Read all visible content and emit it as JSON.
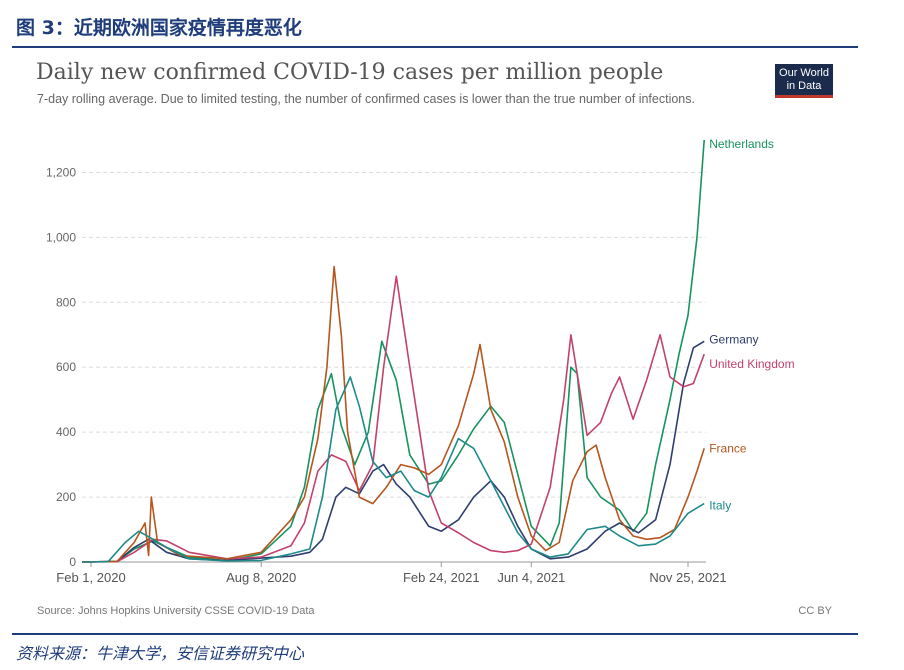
{
  "figure_heading": "图 3：近期欧洲国家疫情再度恶化",
  "footnote": "资料来源：牛津大学，安信证券研究中心",
  "logo": {
    "line1": "Our World",
    "line2": "in Data"
  },
  "colors": {
    "heading": "#1f3d7a",
    "logo_bg": "#1a2b4c",
    "logo_accent": "#c0392b"
  },
  "chart_data": {
    "type": "line",
    "title": "Daily new confirmed COVID-19 cases per million people",
    "subtitle": "7-day rolling average. Due to limited testing, the number of confirmed cases is lower than the true number of infections.",
    "source": "Source: Johns Hopkins University CSSE COVID-19 Data",
    "license": "CC BY",
    "x_ticks": [
      "Feb 1, 2020",
      "Aug 8, 2020",
      "Feb 24, 2021",
      "Jun 4, 2021",
      "Nov 25, 2021"
    ],
    "y_ticks": [
      "0",
      "200",
      "400",
      "600",
      "800",
      "1,000",
      "1,200"
    ],
    "ylim": [
      0,
      1300
    ],
    "xlim": [
      "2020-01-22",
      "2021-12-15"
    ],
    "grid": "horizontal dashed",
    "legend": "inline labels at line ends",
    "series": [
      {
        "name": "Netherlands",
        "color": "#18935f",
        "points": [
          [
            "2020-01-22",
            0
          ],
          [
            "2020-03-01",
            2
          ],
          [
            "2020-03-20",
            40
          ],
          [
            "2020-04-10",
            65
          ],
          [
            "2020-04-25",
            45
          ],
          [
            "2020-05-20",
            15
          ],
          [
            "2020-07-01",
            4
          ],
          [
            "2020-08-08",
            25
          ],
          [
            "2020-09-10",
            110
          ],
          [
            "2020-09-25",
            230
          ],
          [
            "2020-10-10",
            470
          ],
          [
            "2020-10-25",
            580
          ],
          [
            "2020-11-05",
            420
          ],
          [
            "2020-11-20",
            300
          ],
          [
            "2020-12-05",
            400
          ],
          [
            "2020-12-20",
            680
          ],
          [
            "2021-01-05",
            560
          ],
          [
            "2021-01-20",
            330
          ],
          [
            "2021-02-10",
            240
          ],
          [
            "2021-02-24",
            250
          ],
          [
            "2021-03-15",
            330
          ],
          [
            "2021-04-01",
            410
          ],
          [
            "2021-04-20",
            480
          ],
          [
            "2021-05-05",
            430
          ],
          [
            "2021-05-20",
            270
          ],
          [
            "2021-06-04",
            110
          ],
          [
            "2021-06-25",
            50
          ],
          [
            "2021-07-05",
            120
          ],
          [
            "2021-07-18",
            600
          ],
          [
            "2021-07-25",
            580
          ],
          [
            "2021-08-05",
            260
          ],
          [
            "2021-08-20",
            200
          ],
          [
            "2021-09-10",
            160
          ],
          [
            "2021-09-25",
            95
          ],
          [
            "2021-10-10",
            150
          ],
          [
            "2021-10-20",
            300
          ],
          [
            "2021-11-05",
            500
          ],
          [
            "2021-11-15",
            640
          ],
          [
            "2021-11-25",
            760
          ],
          [
            "2021-12-05",
            1000
          ],
          [
            "2021-12-13",
            1300
          ]
        ]
      },
      {
        "name": "Germany",
        "color": "#2f3e6e",
        "points": [
          [
            "2020-01-22",
            0
          ],
          [
            "2020-03-01",
            2
          ],
          [
            "2020-03-20",
            45
          ],
          [
            "2020-04-05",
            70
          ],
          [
            "2020-04-25",
            30
          ],
          [
            "2020-05-20",
            10
          ],
          [
            "2020-07-01",
            5
          ],
          [
            "2020-08-08",
            12
          ],
          [
            "2020-09-10",
            18
          ],
          [
            "2020-10-01",
            30
          ],
          [
            "2020-10-15",
            70
          ],
          [
            "2020-10-30",
            200
          ],
          [
            "2020-11-10",
            230
          ],
          [
            "2020-11-25",
            210
          ],
          [
            "2020-12-10",
            280
          ],
          [
            "2020-12-22",
            300
          ],
          [
            "2021-01-05",
            240
          ],
          [
            "2021-01-20",
            200
          ],
          [
            "2021-02-10",
            110
          ],
          [
            "2021-02-24",
            95
          ],
          [
            "2021-03-15",
            130
          ],
          [
            "2021-04-01",
            200
          ],
          [
            "2021-04-20",
            250
          ],
          [
            "2021-05-05",
            200
          ],
          [
            "2021-05-20",
            110
          ],
          [
            "2021-06-04",
            40
          ],
          [
            "2021-06-25",
            10
          ],
          [
            "2021-07-15",
            15
          ],
          [
            "2021-08-05",
            40
          ],
          [
            "2021-08-25",
            95
          ],
          [
            "2021-09-10",
            120
          ],
          [
            "2021-10-01",
            90
          ],
          [
            "2021-10-20",
            130
          ],
          [
            "2021-11-05",
            300
          ],
          [
            "2021-11-20",
            550
          ],
          [
            "2021-12-01",
            660
          ],
          [
            "2021-12-13",
            680
          ]
        ]
      },
      {
        "name": "United Kingdom",
        "color": "#c2426b",
        "points": [
          [
            "2020-01-22",
            0
          ],
          [
            "2020-03-01",
            1
          ],
          [
            "2020-03-20",
            30
          ],
          [
            "2020-04-10",
            70
          ],
          [
            "2020-04-25",
            65
          ],
          [
            "2020-05-20",
            30
          ],
          [
            "2020-07-01",
            10
          ],
          [
            "2020-08-08",
            15
          ],
          [
            "2020-09-10",
            50
          ],
          [
            "2020-09-25",
            120
          ],
          [
            "2020-10-10",
            280
          ],
          [
            "2020-10-25",
            330
          ],
          [
            "2020-11-10",
            310
          ],
          [
            "2020-11-25",
            220
          ],
          [
            "2020-12-10",
            300
          ],
          [
            "2020-12-22",
            600
          ],
          [
            "2021-01-05",
            880
          ],
          [
            "2021-01-20",
            600
          ],
          [
            "2021-02-10",
            220
          ],
          [
            "2021-02-24",
            120
          ],
          [
            "2021-03-15",
            90
          ],
          [
            "2021-04-01",
            60
          ],
          [
            "2021-04-20",
            35
          ],
          [
            "2021-05-05",
            30
          ],
          [
            "2021-05-20",
            35
          ],
          [
            "2021-06-04",
            55
          ],
          [
            "2021-06-25",
            230
          ],
          [
            "2021-07-10",
            500
          ],
          [
            "2021-07-18",
            700
          ],
          [
            "2021-08-05",
            390
          ],
          [
            "2021-08-20",
            430
          ],
          [
            "2021-09-01",
            520
          ],
          [
            "2021-09-10",
            570
          ],
          [
            "2021-09-25",
            440
          ],
          [
            "2021-10-10",
            560
          ],
          [
            "2021-10-25",
            700
          ],
          [
            "2021-11-05",
            570
          ],
          [
            "2021-11-20",
            540
          ],
          [
            "2021-12-01",
            550
          ],
          [
            "2021-12-13",
            640
          ]
        ]
      },
      {
        "name": "France",
        "color": "#b5561f",
        "points": [
          [
            "2020-01-22",
            0
          ],
          [
            "2020-03-01",
            2
          ],
          [
            "2020-03-20",
            60
          ],
          [
            "2020-04-01",
            120
          ],
          [
            "2020-04-05",
            20
          ],
          [
            "2020-04-08",
            200
          ],
          [
            "2020-04-15",
            60
          ],
          [
            "2020-05-10",
            20
          ],
          [
            "2020-07-01",
            10
          ],
          [
            "2020-08-08",
            30
          ],
          [
            "2020-09-10",
            130
          ],
          [
            "2020-09-25",
            200
          ],
          [
            "2020-10-10",
            380
          ],
          [
            "2020-10-20",
            600
          ],
          [
            "2020-10-28",
            910
          ],
          [
            "2020-11-05",
            700
          ],
          [
            "2020-11-12",
            400
          ],
          [
            "2020-11-25",
            200
          ],
          [
            "2020-12-10",
            180
          ],
          [
            "2020-12-25",
            230
          ],
          [
            "2021-01-10",
            300
          ],
          [
            "2021-01-25",
            290
          ],
          [
            "2021-02-10",
            270
          ],
          [
            "2021-02-24",
            300
          ],
          [
            "2021-03-15",
            420
          ],
          [
            "2021-04-01",
            580
          ],
          [
            "2021-04-08",
            670
          ],
          [
            "2021-04-20",
            470
          ],
          [
            "2021-05-05",
            370
          ],
          [
            "2021-05-20",
            200
          ],
          [
            "2021-06-04",
            80
          ],
          [
            "2021-06-20",
            35
          ],
          [
            "2021-07-05",
            60
          ],
          [
            "2021-07-20",
            250
          ],
          [
            "2021-08-05",
            340
          ],
          [
            "2021-08-15",
            360
          ],
          [
            "2021-08-25",
            260
          ],
          [
            "2021-09-10",
            130
          ],
          [
            "2021-09-25",
            80
          ],
          [
            "2021-10-10",
            70
          ],
          [
            "2021-10-25",
            75
          ],
          [
            "2021-11-10",
            100
          ],
          [
            "2021-11-25",
            200
          ],
          [
            "2021-12-05",
            280
          ],
          [
            "2021-12-13",
            350
          ]
        ]
      },
      {
        "name": "Italy",
        "color": "#1f8a8a",
        "points": [
          [
            "2020-01-22",
            0
          ],
          [
            "2020-02-20",
            1
          ],
          [
            "2020-03-10",
            60
          ],
          [
            "2020-03-25",
            95
          ],
          [
            "2020-04-10",
            70
          ],
          [
            "2020-04-25",
            45
          ],
          [
            "2020-05-20",
            10
          ],
          [
            "2020-07-01",
            3
          ],
          [
            "2020-08-08",
            5
          ],
          [
            "2020-09-10",
            25
          ],
          [
            "2020-10-01",
            40
          ],
          [
            "2020-10-15",
            200
          ],
          [
            "2020-10-30",
            470
          ],
          [
            "2020-11-15",
            570
          ],
          [
            "2020-11-25",
            480
          ],
          [
            "2020-12-10",
            310
          ],
          [
            "2020-12-25",
            260
          ],
          [
            "2021-01-10",
            280
          ],
          [
            "2021-01-25",
            220
          ],
          [
            "2021-02-10",
            200
          ],
          [
            "2021-02-24",
            260
          ],
          [
            "2021-03-15",
            380
          ],
          [
            "2021-04-01",
            350
          ],
          [
            "2021-04-20",
            250
          ],
          [
            "2021-05-05",
            170
          ],
          [
            "2021-05-20",
            90
          ],
          [
            "2021-06-04",
            40
          ],
          [
            "2021-06-25",
            15
          ],
          [
            "2021-07-15",
            25
          ],
          [
            "2021-08-05",
            100
          ],
          [
            "2021-08-25",
            110
          ],
          [
            "2021-09-10",
            80
          ],
          [
            "2021-10-01",
            50
          ],
          [
            "2021-10-20",
            55
          ],
          [
            "2021-11-05",
            80
          ],
          [
            "2021-11-25",
            150
          ],
          [
            "2021-12-13",
            180
          ]
        ]
      }
    ]
  }
}
